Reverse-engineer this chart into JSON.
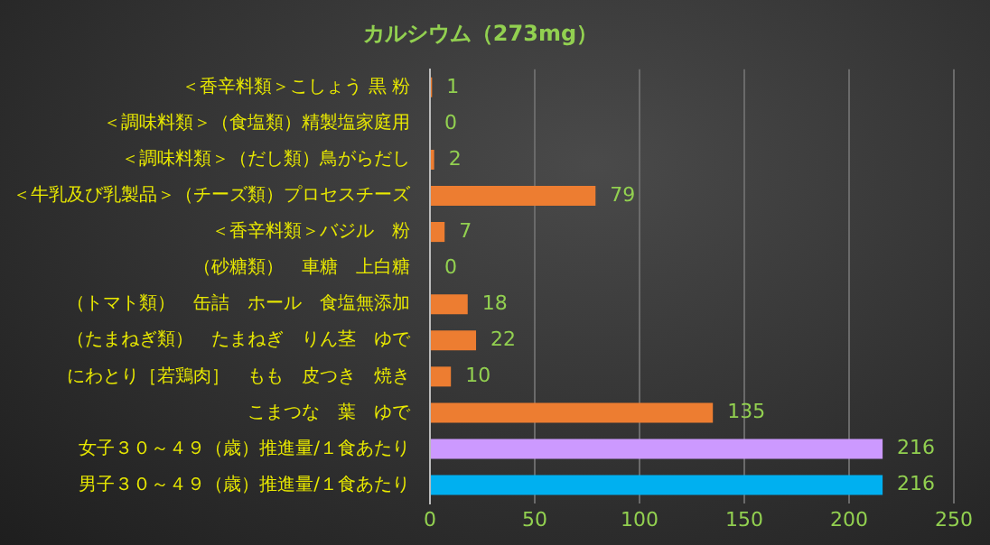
{
  "chart_data": {
    "type": "bar",
    "orientation": "horizontal",
    "title": "カルシウム（273mg）",
    "categories": [
      "＜香辛料類＞こしょう 黒 粉",
      "＜調味料類＞（食塩類）精製塩家庭用",
      "＜調味料類＞（だし類）鳥がらだし",
      "＜牛乳及び乳製品＞（チーズ類）プロセスチーズ",
      "＜香辛料類＞バジル　粉",
      "（砂糖類）　車糖　上白糖",
      "（トマト類）　缶詰　ホール　食塩無添加",
      "（たまねぎ類）　たまねぎ　りん茎　ゆで",
      "にわとり［若鶏肉］　もも　皮つき　焼き",
      "こまつな　葉　ゆで",
      "女子３０～４９（歳）推進量/１食あたり",
      "男子３０～４９（歳）推進量/１食あたり"
    ],
    "values": [
      1,
      0,
      2,
      79,
      7,
      0,
      18,
      22,
      10,
      135,
      216,
      216
    ],
    "colors": [
      "#ed7d31",
      "#ed7d31",
      "#ed7d31",
      "#ed7d31",
      "#ed7d31",
      "#ed7d31",
      "#ed7d31",
      "#ed7d31",
      "#ed7d31",
      "#ed7d31",
      "#cc99ff",
      "#00b0f0"
    ],
    "xlim": [
      0,
      250
    ],
    "xticks": [
      0,
      50,
      100,
      150,
      200,
      250
    ],
    "grid": "x",
    "data_labels": true,
    "legend": false
  }
}
